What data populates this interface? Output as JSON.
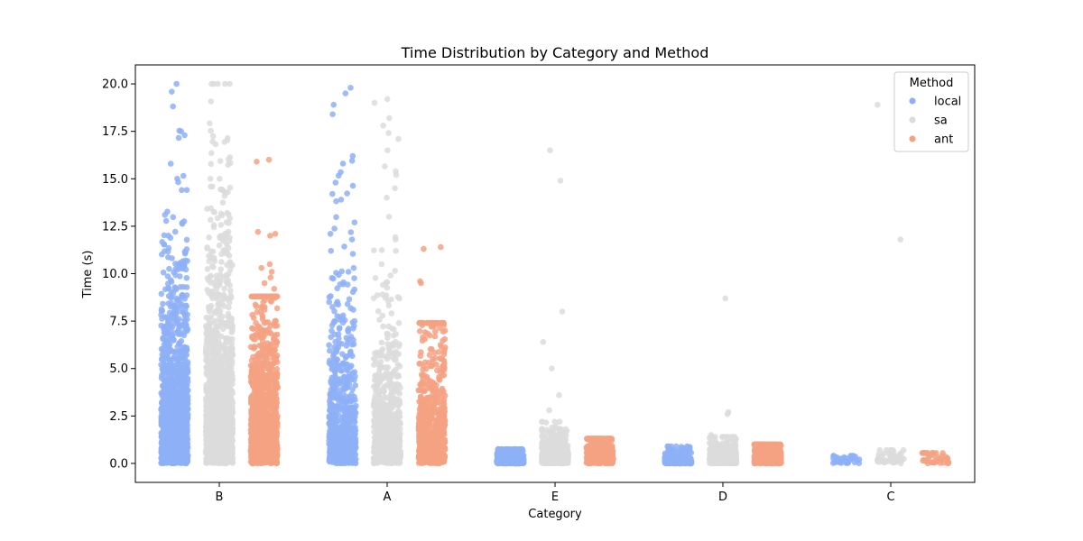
{
  "chart_data": {
    "type": "scatter",
    "title": "Time Distribution by Category and Method",
    "xlabel": "Category",
    "ylabel": "Time (s)",
    "categories": [
      "B",
      "A",
      "E",
      "D",
      "C"
    ],
    "ylim": [
      -1.0,
      21.0
    ],
    "yticks": [
      0.0,
      2.5,
      5.0,
      7.5,
      10.0,
      12.5,
      15.0,
      17.5,
      20.0
    ],
    "ytick_labels": [
      "0.0",
      "2.5",
      "5.0",
      "7.5",
      "10.0",
      "12.5",
      "15.0",
      "17.5",
      "20.0"
    ],
    "grid": false,
    "legend": {
      "title": "Method",
      "placement": "top-right"
    },
    "series": [
      {
        "name": "local",
        "color": "#8eb0f7",
        "groups": [
          {
            "category": "B",
            "n": 1400,
            "max": 20.0,
            "scale": 3.2,
            "outliers": []
          },
          {
            "category": "A",
            "n": 700,
            "max": 19.9,
            "scale": 2.6,
            "outliers": [
              19.8,
              19.5,
              18.9,
              18.4,
              16.2,
              15.8,
              14.8,
              13.9,
              12.7,
              12.1,
              11.8,
              11.2,
              10.3,
              10.1,
              8.5,
              8.4
            ]
          },
          {
            "category": "E",
            "n": 600,
            "max": 0.75,
            "scale": 0.25,
            "outliers": []
          },
          {
            "category": "D",
            "n": 500,
            "max": 0.9,
            "scale": 0.2,
            "outliers": [
              0.88
            ]
          },
          {
            "category": "C",
            "n": 40,
            "max": 0.4,
            "scale": 0.2,
            "outliers": []
          }
        ]
      },
      {
        "name": "sa",
        "color": "#dcdcdc",
        "groups": [
          {
            "category": "B",
            "n": 1400,
            "max": 20.0,
            "scale": 3.8,
            "outliers": []
          },
          {
            "category": "A",
            "n": 700,
            "max": 19.2,
            "scale": 2.3,
            "outliers": [
              19.2,
              19.0,
              18.2,
              17.8,
              17.1,
              16.5,
              15.4,
              15.2,
              14.5,
              14.0,
              13.0,
              11.8,
              11.2,
              10.5,
              9.9,
              9.4,
              8.9
            ]
          },
          {
            "category": "E",
            "n": 500,
            "max": 2.2,
            "scale": 0.5,
            "outliers": [
              16.5,
              14.9,
              8.0,
              6.4,
              5.0,
              3.6,
              2.8,
              2.2
            ]
          },
          {
            "category": "D",
            "n": 500,
            "max": 1.4,
            "scale": 0.35,
            "outliers": [
              8.7,
              2.7,
              2.6,
              1.5
            ]
          },
          {
            "category": "C",
            "n": 50,
            "max": 0.7,
            "scale": 0.3,
            "outliers": [
              18.9,
              11.8
            ]
          }
        ]
      },
      {
        "name": "ant",
        "color": "#f4a282",
        "groups": [
          {
            "category": "B",
            "n": 1300,
            "max": 8.8,
            "scale": 2.6,
            "outliers": [
              16.0,
              15.9,
              12.2,
              12.1,
              12.0,
              10.5,
              10.3,
              10.1,
              9.8,
              9.5,
              9.2
            ]
          },
          {
            "category": "A",
            "n": 700,
            "max": 7.4,
            "scale": 2.2,
            "outliers": [
              11.4,
              11.3,
              9.6,
              9.5
            ]
          },
          {
            "category": "E",
            "n": 500,
            "max": 1.3,
            "scale": 0.7,
            "outliers": []
          },
          {
            "category": "D",
            "n": 500,
            "max": 1.0,
            "scale": 0.45,
            "outliers": []
          },
          {
            "category": "C",
            "n": 40,
            "max": 0.55,
            "scale": 0.5,
            "outliers": []
          }
        ]
      }
    ]
  }
}
